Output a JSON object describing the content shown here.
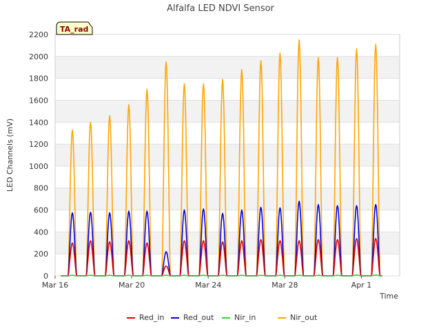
{
  "chart_data": {
    "type": "line",
    "title": "Alfalfa LED NDVI Sensor",
    "xlabel": "Time",
    "ylabel": "LED Channels (mV)",
    "badge": "TA_rad",
    "xlim": [
      0,
      18
    ],
    "ylim": [
      0,
      2200
    ],
    "yticks": [
      0,
      200,
      400,
      600,
      800,
      1000,
      1200,
      1400,
      1600,
      1800,
      2000,
      2200
    ],
    "xticks": [
      {
        "value": 0,
        "label": "Mar 16"
      },
      {
        "value": 4,
        "label": "Mar 20"
      },
      {
        "value": 8,
        "label": "Mar 24"
      },
      {
        "value": 12,
        "label": "Mar 28"
      },
      {
        "value": 16,
        "label": "Apr 1"
      }
    ],
    "legend_position": "bottom",
    "grid": true,
    "day_centers": [
      0.9,
      1.85,
      2.85,
      3.85,
      4.8,
      5.8,
      6.75,
      7.75,
      8.75,
      9.75,
      10.75,
      11.75,
      12.75,
      13.75,
      14.75,
      15.75,
      16.75
    ],
    "series": [
      {
        "name": "Red_in",
        "color": "#dd0000",
        "daily_peaks": [
          300,
          320,
          310,
          320,
          300,
          90,
          320,
          320,
          310,
          320,
          330,
          320,
          320,
          330,
          330,
          340,
          340
        ]
      },
      {
        "name": "Red_out",
        "color": "#0000dd",
        "daily_peaks": [
          575,
          580,
          575,
          590,
          590,
          220,
          600,
          610,
          570,
          600,
          625,
          620,
          680,
          650,
          640,
          640,
          650
        ]
      },
      {
        "name": "Nir_in",
        "color": "#22dd22",
        "daily_peaks": [
          5,
          5,
          5,
          5,
          5,
          5,
          5,
          5,
          5,
          5,
          5,
          5,
          5,
          5,
          5,
          8,
          8
        ]
      },
      {
        "name": "Nir_out",
        "color": "#ffa500",
        "daily_peaks": [
          1330,
          1400,
          1460,
          1560,
          1700,
          1950,
          1750,
          1750,
          1790,
          1880,
          1960,
          2030,
          2150,
          1990,
          1990,
          2070,
          2110
        ]
      }
    ]
  }
}
